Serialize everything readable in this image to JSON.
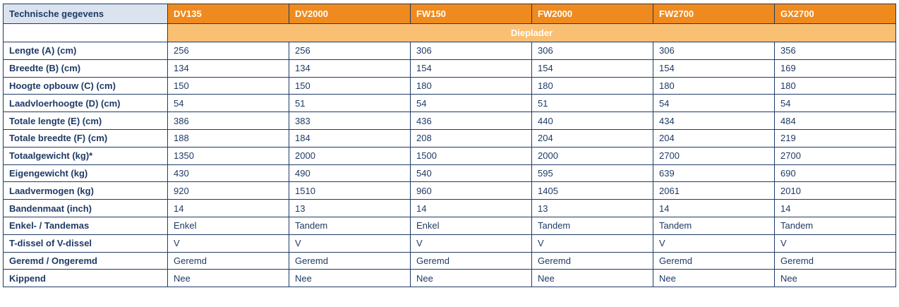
{
  "table": {
    "header_label": "Technische gegevens",
    "models": [
      "DV135",
      "DV2000",
      "FW150",
      "FW2000",
      "FW2700",
      "GX2700"
    ],
    "group_label": "Dieplader",
    "rows": [
      {
        "label": "Lengte (A) (cm)",
        "values": [
          "256",
          "256",
          "306",
          "306",
          "306",
          "356"
        ]
      },
      {
        "label": "Breedte (B) (cm)",
        "values": [
          "134",
          "134",
          "154",
          "154",
          "154",
          "169"
        ]
      },
      {
        "label": "Hoogte opbouw (C) (cm)",
        "values": [
          "150",
          "150",
          "180",
          "180",
          "180",
          "180"
        ]
      },
      {
        "label": "Laadvloerhoogte (D) (cm)",
        "values": [
          "54",
          "51",
          "54",
          "51",
          "54",
          "54"
        ]
      },
      {
        "label": "Totale lengte (E) (cm)",
        "values": [
          "386",
          "383",
          "436",
          "440",
          "434",
          "484"
        ]
      },
      {
        "label": "Totale breedte (F) (cm)",
        "values": [
          "188",
          "184",
          "208",
          "204",
          "204",
          "219"
        ]
      },
      {
        "label": "Totaalgewicht (kg)*",
        "values": [
          "1350",
          "2000",
          "1500",
          "2000",
          "2700",
          "2700"
        ]
      },
      {
        "label": "Eigengewicht (kg)",
        "values": [
          "430",
          "490",
          "540",
          "595",
          "639",
          "690"
        ]
      },
      {
        "label": "Laadvermogen (kg)",
        "values": [
          "920",
          "1510",
          "960",
          "1405",
          "2061",
          "2010"
        ]
      },
      {
        "label": "Bandenmaat (inch)",
        "values": [
          "14",
          "13",
          "14",
          "13",
          "14",
          "14"
        ]
      },
      {
        "label": "Enkel- / Tandemas",
        "values": [
          "Enkel",
          "Tandem",
          "Enkel",
          "Tandem",
          "Tandem",
          "Tandem"
        ]
      },
      {
        "label": "T-dissel of V-dissel",
        "values": [
          "V",
          "V",
          "V",
          "V",
          "V",
          "V"
        ]
      },
      {
        "label": "Geremd / Ongeremd",
        "values": [
          "Geremd",
          "Geremd",
          "Geremd",
          "Geremd",
          "Geremd",
          "Geremd"
        ]
      },
      {
        "label": "Kippend",
        "values": [
          "Nee",
          "Nee",
          "Nee",
          "Nee",
          "Nee",
          "Nee"
        ]
      }
    ]
  },
  "colors": {
    "accent": "#ef8a1e",
    "group_band": "#f9bf73",
    "header_cell": "#dbe3ef",
    "text_navy": "#1f3a66"
  }
}
